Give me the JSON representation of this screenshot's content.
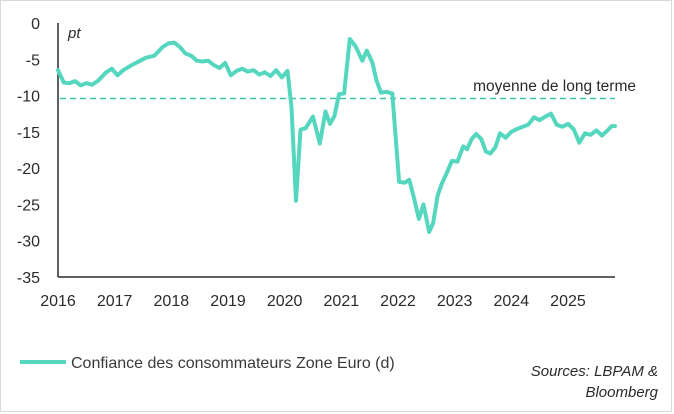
{
  "colors": {
    "series": "#55D6BE",
    "axis": "#2b2b2b",
    "avg_line": "#3FC3AA"
  },
  "chart_data": {
    "type": "line",
    "y_unit_label": "pt",
    "ylim": [
      -35,
      0
    ],
    "y_ticks": [
      0,
      -5,
      -10,
      -15,
      -20,
      -25,
      -30,
      -35
    ],
    "y_tick_labels": [
      "0",
      "-5",
      "-10",
      "-15",
      "-20",
      "-25",
      "-30",
      "-35"
    ],
    "xlim": [
      2016.0,
      2025.83
    ],
    "x_ticks": [
      2016,
      2017,
      2018,
      2019,
      2020,
      2021,
      2022,
      2023,
      2024,
      2025
    ],
    "x_tick_labels": [
      "2016",
      "2017",
      "2018",
      "2019",
      "2020",
      "2021",
      "2022",
      "2023",
      "2024",
      "2025"
    ],
    "grid": false,
    "series": [
      {
        "name": "Confiance des consommateurs Zone Euro (d)",
        "x": [
          2016.0,
          2016.1,
          2016.2,
          2016.3,
          2016.4,
          2016.5,
          2016.6,
          2016.7,
          2016.85,
          2016.95,
          2017.05,
          2017.15,
          2017.3,
          2017.45,
          2017.55,
          2017.7,
          2017.85,
          2017.95,
          2018.05,
          2018.15,
          2018.25,
          2018.35,
          2018.45,
          2018.55,
          2018.65,
          2018.75,
          2018.85,
          2018.95,
          2019.05,
          2019.15,
          2019.25,
          2019.35,
          2019.45,
          2019.55,
          2019.65,
          2019.75,
          2019.85,
          2019.95,
          2020.05,
          2020.12,
          2020.2,
          2020.28,
          2020.37,
          2020.5,
          2020.62,
          2020.72,
          2020.8,
          2020.88,
          2020.96,
          2021.05,
          2021.15,
          2021.25,
          2021.37,
          2021.45,
          2021.55,
          2021.62,
          2021.7,
          2021.8,
          2021.9,
          2022.02,
          2022.12,
          2022.2,
          2022.28,
          2022.37,
          2022.45,
          2022.55,
          2022.62,
          2022.7,
          2022.77,
          2022.87,
          2022.95,
          2023.05,
          2023.15,
          2023.22,
          2023.3,
          2023.38,
          2023.47,
          2023.55,
          2023.63,
          2023.72,
          2023.8,
          2023.9,
          2024.0,
          2024.1,
          2024.2,
          2024.3,
          2024.4,
          2024.5,
          2024.6,
          2024.7,
          2024.8,
          2024.9,
          2025.0,
          2025.1,
          2025.2,
          2025.3,
          2025.4,
          2025.5,
          2025.6,
          2025.7,
          2025.77,
          2025.83
        ],
        "y": [
          -6.5,
          -8.2,
          -8.3,
          -8.0,
          -8.6,
          -8.3,
          -8.5,
          -8.0,
          -6.8,
          -6.3,
          -7.2,
          -6.5,
          -5.8,
          -5.2,
          -4.8,
          -4.5,
          -3.3,
          -2.8,
          -2.7,
          -3.3,
          -4.2,
          -4.5,
          -5.2,
          -5.3,
          -5.2,
          -5.8,
          -6.2,
          -5.5,
          -7.2,
          -6.6,
          -6.3,
          -6.7,
          -6.5,
          -7.1,
          -6.8,
          -7.3,
          -6.5,
          -7.5,
          -6.6,
          -11.6,
          -24.5,
          -14.7,
          -14.5,
          -12.9,
          -16.6,
          -12.2,
          -13.9,
          -12.8,
          -9.8,
          -9.7,
          -2.2,
          -3.2,
          -5.2,
          -3.8,
          -5.5,
          -7.9,
          -9.6,
          -9.5,
          -9.7,
          -21.9,
          -22.0,
          -21.6,
          -24.0,
          -27.0,
          -25.0,
          -28.8,
          -27.6,
          -23.8,
          -22.2,
          -20.5,
          -19.0,
          -19.1,
          -17.0,
          -17.4,
          -16.0,
          -15.3,
          -16.0,
          -17.7,
          -18.0,
          -17.1,
          -15.2,
          -15.8,
          -15.0,
          -14.6,
          -14.3,
          -14.0,
          -13.0,
          -13.4,
          -12.9,
          -12.5,
          -14.0,
          -14.3,
          -13.9,
          -14.6,
          -16.5,
          -15.2,
          -15.4,
          -14.8,
          -15.5,
          -14.8,
          -14.2,
          -14.2
        ],
        "color": "#55D6BE"
      }
    ],
    "annotations": [
      {
        "type": "hline",
        "y": -10.4,
        "label": "moyenne de long terme"
      }
    ]
  },
  "legend": {
    "label": "Confiance des consommateurs Zone Euro (d)"
  },
  "source": {
    "line1": "Sources: LBPAM &",
    "line2": "Bloomberg"
  }
}
